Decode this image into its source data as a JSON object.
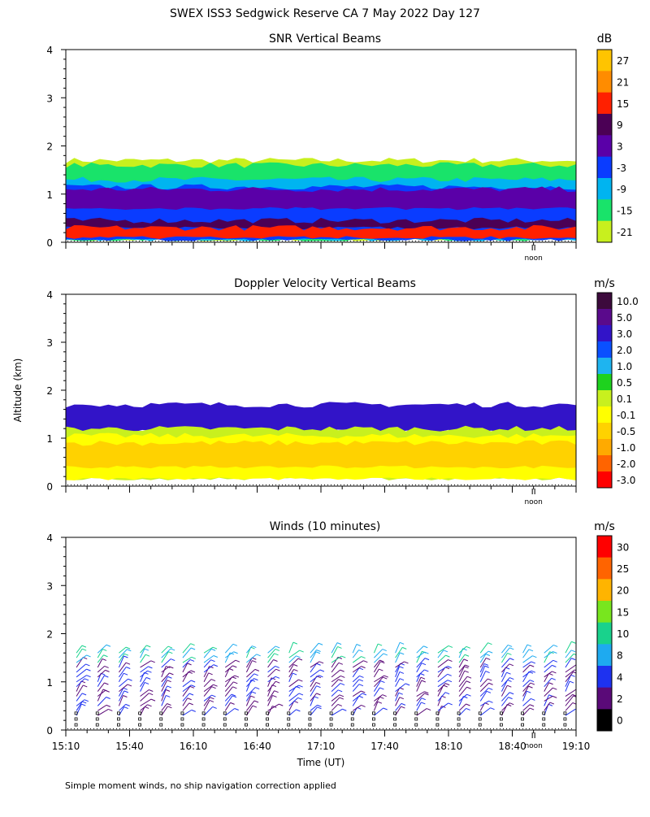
{
  "figure": {
    "title": "SWEX ISS3 Sedgwick Reserve CA   7 May 2022 Day 127",
    "ylabel": "Altitude (km)",
    "xlabel": "Time (UT)",
    "footnote": "Simple moment winds, no ship navigation correction applied",
    "noon_label": "noon"
  },
  "chart_data": [
    {
      "type": "heatmap",
      "title": "SNR Vertical Beams",
      "units": "dB",
      "ylim": [
        0,
        4
      ],
      "yticks": [
        "0",
        "1",
        "2",
        "3",
        "4"
      ],
      "xlim": [
        "15:10",
        "19:10"
      ],
      "colorbar": {
        "labels": [
          "27",
          "21",
          "15",
          "9",
          "3",
          "-3",
          "-9",
          "-15",
          "-21"
        ],
        "colors": [
          "#ffc400",
          "#ff8c00",
          "#ff2000",
          "#4b0055",
          "#5a00a8",
          "#0a3cff",
          "#00b4f0",
          "#19e36a",
          "#c8f01e"
        ]
      },
      "layers": [
        {
          "label": "-21",
          "top_km": 1.7,
          "bottom_km": 0.05
        },
        {
          "label": "-15",
          "top_km": 1.6,
          "bottom_km": 0.05
        },
        {
          "label": "-9",
          "top_km": 1.3,
          "bottom_km": 0.05
        },
        {
          "label": "-3",
          "top_km": 1.15,
          "bottom_km": 0.05
        },
        {
          "label": "3",
          "top_km": 1.1,
          "bottom_km": 0.7
        },
        {
          "label": "9",
          "top_km": 0.45,
          "bottom_km": 0.3
        },
        {
          "label": "15",
          "top_km": 0.3,
          "bottom_km": 0.1
        }
      ]
    },
    {
      "type": "heatmap",
      "title": "Doppler Velocity Vertical Beams",
      "units": "m/s",
      "ylim": [
        0,
        4
      ],
      "yticks": [
        "0",
        "1",
        "2",
        "3",
        "4"
      ],
      "xlim": [
        "15:10",
        "19:10"
      ],
      "colorbar": {
        "labels": [
          "10.0",
          "5.0",
          "3.0",
          "2.0",
          "1.0",
          "0.5",
          "0.1",
          "-0.1",
          "-0.5",
          "-1.0",
          "-2.0",
          "-3.0"
        ],
        "colors": [
          "#3c0a3c",
          "#5a0a8c",
          "#3214c8",
          "#0a50ff",
          "#1eb4f0",
          "#1ed21e",
          "#c8f01e",
          "#ffff00",
          "#ffd200",
          "#ffaa00",
          "#ff6400",
          "#ff0000"
        ]
      },
      "layers": [
        {
          "label": "3.0",
          "top_km": 1.7,
          "bottom_km": 1.15
        },
        {
          "label": "0.1",
          "top_km": 1.2,
          "bottom_km": 0.15
        },
        {
          "label": "-0.1",
          "top_km": 1.05,
          "bottom_km": 0.15
        },
        {
          "label": "-0.5",
          "top_km": 0.9,
          "bottom_km": 0.4
        }
      ]
    },
    {
      "type": "barbs",
      "title": "Winds (10 minutes)",
      "units": "m/s",
      "ylim": [
        0,
        4
      ],
      "yticks": [
        "0",
        "1",
        "2",
        "3",
        "4"
      ],
      "xticks": [
        "15:10",
        "15:40",
        "16:10",
        "16:40",
        "17:10",
        "17:40",
        "18:10",
        "18:40",
        "19:10"
      ],
      "xlim": [
        "15:10",
        "19:10"
      ],
      "colorbar": {
        "labels": [
          "30",
          "25",
          "20",
          "15",
          "10",
          "8",
          "4",
          "2",
          "0"
        ],
        "colors": [
          "#ff0000",
          "#ff6400",
          "#ffb400",
          "#78e61e",
          "#19d28c",
          "#1eaaf0",
          "#1e32f0",
          "#5a0a78",
          "#000000"
        ]
      },
      "profiles_minutes_after_start": [
        5,
        15,
        25,
        35,
        45,
        55,
        65,
        75,
        85,
        95,
        105,
        115,
        125,
        135,
        145,
        155,
        165,
        175,
        185,
        195,
        205,
        215,
        225,
        235
      ]
    }
  ]
}
